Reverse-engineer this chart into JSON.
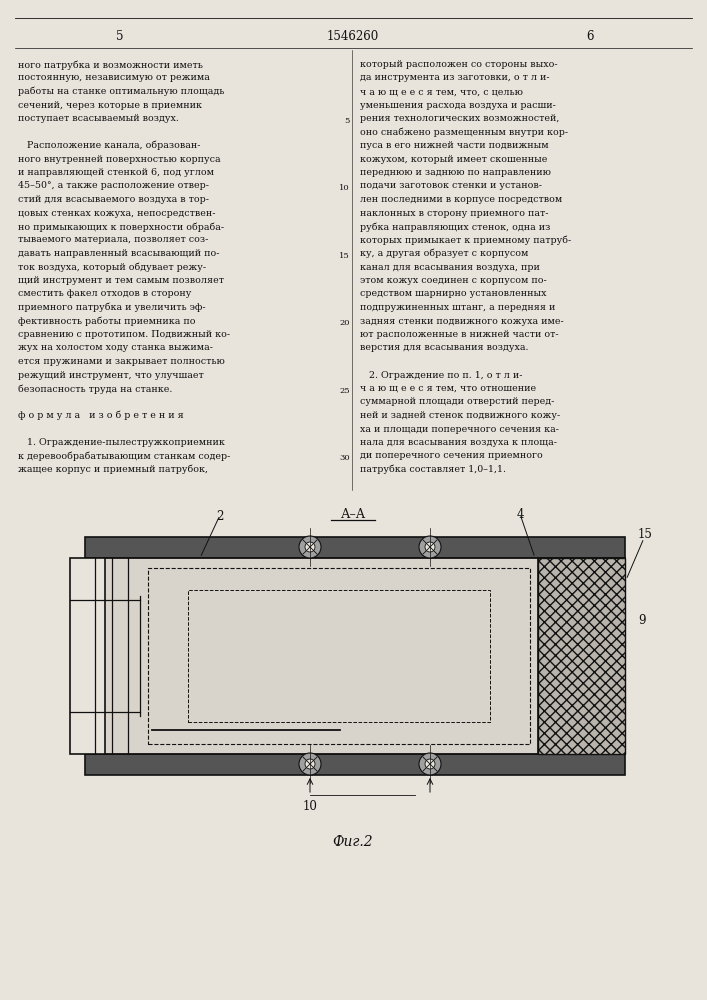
{
  "page_width": 7.07,
  "page_height": 10.0,
  "bg_color": "#e8e4dc",
  "text_color": "#111111",
  "header": {
    "page_left": "5",
    "title_center": "1546260",
    "page_right": "6"
  },
  "col1_text": [
    "ного патрубка и возможности иметь",
    "постоянную, независимую от режима",
    "работы на станке оптимальную площадь",
    "сечений, через которые в приемник",
    "поступает всасываемый воздух.",
    "",
    "   Расположение канала, образован-",
    "ного внутренней поверхностью корпуса",
    "и направляющей стенкой 6, под углом",
    "45–50°, а также расположение отвер-",
    "стий для всасываемого воздуха в тор-",
    "цовых стенках кожуха, непосредствен-",
    "но примыкающих к поверхности обраба-",
    "тываемого материала, позволяет соз-",
    "давать направленный всасывающий по-",
    "ток воздуха, который обдувает режу-",
    "щий инструмент и тем самым позволяет",
    "сместить факел отходов в сторону",
    "приемного патрубка и увеличить эф-",
    "фективность работы приемника по",
    "сравнению с прототипом. Подвижный ко-",
    "жух на холостом ходу станка выжима-",
    "ется пружинами и закрывает полностью",
    "режущий инструмент, что улучшает",
    "безопасность труда на станке.",
    "",
    "ф о р м у л а   и з о б р е т е н и я",
    "",
    "   1. Ограждение-пылестружкоприемник",
    "к деревообрабатывающим станкам содер-",
    "жащее корпус и приемный патрубок,"
  ],
  "col2_text": [
    "который расположен со стороны выхо-",
    "да инструмента из заготовки, о т л и-",
    "ч а ю щ е е с я тем, что, с целью",
    "уменьшения расхода воздуха и расши-",
    "рения технологических возможностей,",
    "оно снабжено размещенным внутри кор-",
    "пуса в его нижней части подвижным",
    "кожухом, который имеет скошенные",
    "переднюю и заднюю по направлению",
    "подачи заготовок стенки и установ-",
    "лен последними в корпусе посредством",
    "наклонных в сторону приемного пат-",
    "рубка направляющих стенок, одна из",
    "которых примыкает к приемному патруб-",
    "ку, а другая образует с корпусом",
    "канал для всасывания воздуха, при",
    "этом кожух соединен с корпусом по-",
    "средством шарнирно установленных",
    "подпружиненных штанг, а передняя и",
    "задняя стенки подвижного кожуха име-",
    "ют расположенные в нижней части от-",
    "верстия для всасывания воздуха.",
    "",
    "   2. Ограждение по п. 1, о т л и-",
    "ч а ю щ е е с я тем, что отношение",
    "суммарной площади отверстий перед-",
    "ней и задней стенок подвижного кожу-",
    "ха и площади поперечного сечения ка-",
    "нала для всасывания воздуха к площа-",
    "ди поперечного сечения приемного",
    "патрубка составляет 1,0–1,1."
  ],
  "line_numbers": [
    5,
    10,
    15,
    20,
    25,
    30
  ],
  "figure_label": "Фиг.2",
  "section_label": "А–А"
}
